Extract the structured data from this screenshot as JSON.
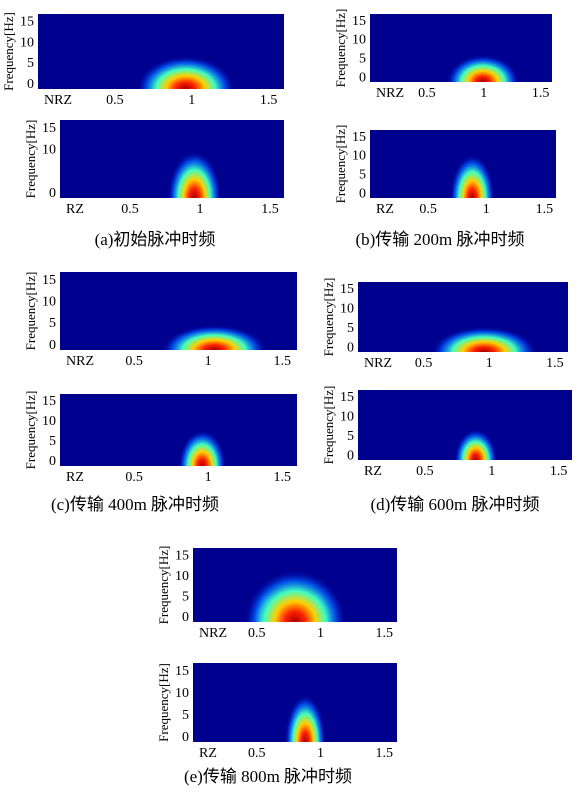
{
  "figures": [
    {
      "caption": "(a)初始脉冲时频",
      "panels": [
        {
          "label": "NRZ",
          "ylabel": "Frequency[Hz]",
          "yticks": [
            15,
            10,
            5,
            0
          ],
          "xticks": [
            0.5,
            1,
            1.5
          ]
        },
        {
          "label": "RZ",
          "ylabel": "Frequency[Hz]",
          "yticks": [
            15,
            10,
            0
          ],
          "xticks": [
            0.5,
            1,
            1.5
          ]
        }
      ]
    },
    {
      "caption": "(b)传输 200m 脉冲时频",
      "panels": [
        {
          "label": "NRZ",
          "ylabel": "Frequency[Hz]",
          "yticks": [
            15,
            10,
            5,
            0
          ],
          "xticks": [
            0.5,
            1,
            1.5
          ]
        },
        {
          "label": "RZ",
          "ylabel": "Frequency[Hz]",
          "yticks": [
            15,
            10,
            5,
            0
          ],
          "xticks": [
            0.5,
            1,
            1.5
          ]
        }
      ]
    },
    {
      "caption": "(c)传输 400m 脉冲时频",
      "panels": [
        {
          "label": "NRZ",
          "ylabel": "Frequency[Hz]",
          "yticks": [
            15,
            10,
            5,
            0
          ],
          "xticks": [
            0.5,
            1,
            1.5
          ]
        },
        {
          "label": "RZ",
          "ylabel": "Frequency[Hz]",
          "yticks": [
            15,
            10,
            5,
            0
          ],
          "xticks": [
            0.5,
            1,
            1.5
          ]
        }
      ]
    },
    {
      "caption": "(d)传输 600m 脉冲时频",
      "panels": [
        {
          "label": "NRZ",
          "ylabel": "Frequency[Hz]",
          "yticks": [
            15,
            10,
            5,
            0
          ],
          "xticks": [
            0.5,
            1,
            1.5
          ]
        },
        {
          "label": "RZ",
          "ylabel": "Frequency[Hz]",
          "yticks": [
            15,
            10,
            5,
            0
          ],
          "xticks": [
            0.5,
            1,
            1.5
          ]
        }
      ]
    },
    {
      "caption": "(e)传输 800m 脉冲时频",
      "panels": [
        {
          "label": "NRZ",
          "ylabel": "Frequency[Hz]",
          "yticks": [
            15,
            10,
            5,
            0
          ],
          "xticks": [
            0.5,
            1,
            1.5
          ]
        },
        {
          "label": "RZ",
          "ylabel": "Frequency[Hz]",
          "yticks": [
            15,
            10,
            5,
            0
          ],
          "xticks": [
            0.5,
            1,
            1.5
          ]
        }
      ]
    }
  ],
  "xlim": [
    0,
    1.6
  ],
  "ylim": [
    -1,
    17
  ]
}
